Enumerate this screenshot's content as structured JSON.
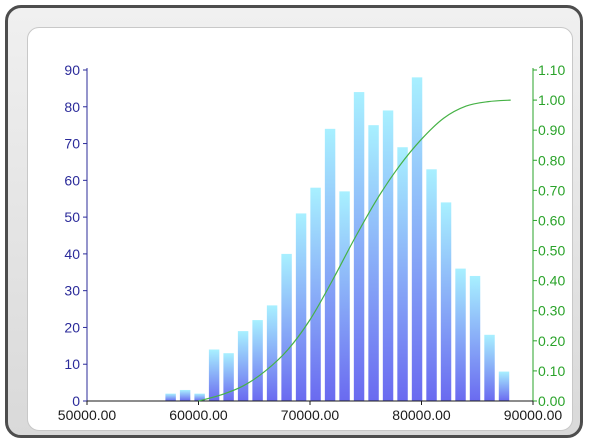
{
  "chart_data": {
    "type": "bar",
    "title": "",
    "xlabel": "",
    "ylabel": "",
    "xlim": [
      50000,
      90000
    ],
    "ylim": [
      0,
      90
    ],
    "y2lim": [
      0,
      1.1
    ],
    "x_ticks": [
      "50000.00",
      "60000.00",
      "70000.00",
      "80000.00",
      "90000.00"
    ],
    "y_ticks": [
      "0",
      "10",
      "20",
      "30",
      "40",
      "50",
      "60",
      "70",
      "80",
      "90"
    ],
    "y2_ticks": [
      "0.00",
      "0.10",
      "0.20",
      "0.30",
      "0.40",
      "0.50",
      "0.60",
      "0.70",
      "0.80",
      "0.90",
      "1.00",
      "1.10"
    ],
    "bin_width": 1300,
    "series": [
      {
        "type": "bar",
        "axis": "left",
        "x": [
          57500,
          58800,
          60100,
          61400,
          62700,
          64000,
          65300,
          66600,
          67900,
          69200,
          70500,
          71800,
          73100,
          74400,
          75700,
          77000,
          78300,
          79600,
          80900,
          82200,
          83500,
          84800,
          86100,
          87400
        ],
        "values": [
          2,
          3,
          2,
          14,
          13,
          19,
          22,
          26,
          40,
          51,
          58,
          74,
          57,
          84,
          75,
          79,
          69,
          88,
          63,
          54,
          36,
          34,
          18,
          8
        ]
      },
      {
        "type": "line",
        "axis": "right",
        "x": [
          60000,
          62000,
          64000,
          66000,
          68000,
          70000,
          72000,
          74000,
          76000,
          78000,
          80000,
          82000,
          84000,
          86000,
          88000
        ],
        "values": [
          0.0,
          0.02,
          0.05,
          0.1,
          0.17,
          0.27,
          0.4,
          0.54,
          0.67,
          0.78,
          0.87,
          0.94,
          0.98,
          0.995,
          1.0
        ]
      }
    ],
    "grid": false,
    "legend": "none",
    "colors": {
      "bar_top": "#a8f0ff",
      "bar_bottom": "#6a6af0",
      "line": "#46b246",
      "left_axis": "#2b2b9a",
      "right_axis": "#2aa32a",
      "x_axis": "#1a1a1a"
    }
  }
}
